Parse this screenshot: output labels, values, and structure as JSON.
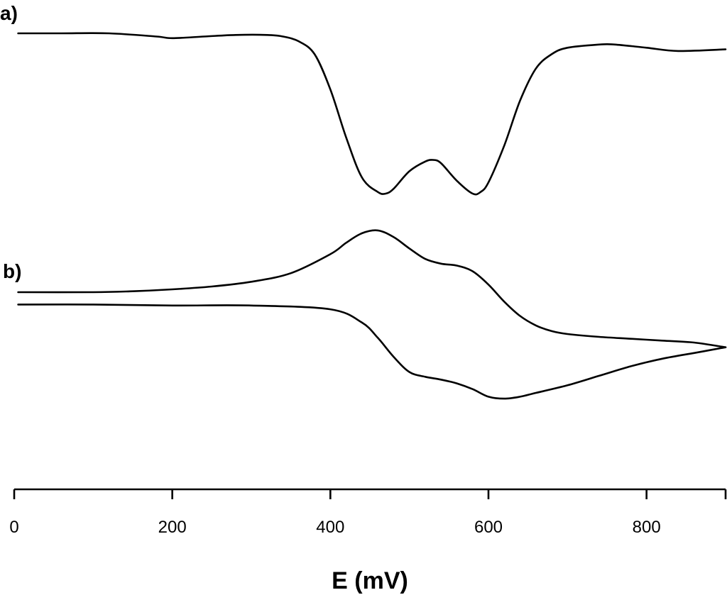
{
  "chart_data": {
    "type": "line",
    "xlabel": "E (mV)",
    "xlim": [
      0,
      900
    ],
    "xticks": [
      0,
      200,
      400,
      600,
      800
    ],
    "grid": false,
    "panels": [
      {
        "label": "a)",
        "description_type": "square-wave voltammogram",
        "series": [
          {
            "x": [
              5,
              60,
              120,
              180,
              200,
              240,
              280,
              320,
              340,
              360,
              380,
              400,
              420,
              440,
              460,
              470,
              480,
              500,
              520,
              530,
              540,
              560,
              580,
              590,
              600,
              620,
              640,
              660,
              680,
              700,
              740,
              760,
              800,
              840,
              900
            ],
            "y": [
              0.0,
              0.0,
              0.0,
              -0.02,
              -0.03,
              -0.02,
              -0.01,
              -0.01,
              -0.02,
              -0.05,
              -0.13,
              -0.35,
              -0.65,
              -0.9,
              -0.99,
              -1.0,
              -0.97,
              -0.86,
              -0.8,
              -0.79,
              -0.81,
              -0.92,
              -1.0,
              -0.99,
              -0.93,
              -0.7,
              -0.42,
              -0.22,
              -0.13,
              -0.09,
              -0.07,
              -0.07,
              -0.09,
              -0.11,
              -0.1
            ]
          }
        ]
      },
      {
        "label": "b)",
        "description_type": "cyclic voltammogram",
        "series": [
          {
            "x": [
              5,
              100,
              150,
              200,
              250,
              300,
              350,
              400,
              420,
              440,
              460,
              480,
              500,
              520,
              540,
              560,
              580,
              600,
              620,
              640,
              660,
              680,
              700,
              740,
              780,
              820,
              860,
              900
            ],
            "y": [
              0.0,
              0.0,
              0.01,
              0.03,
              0.06,
              0.11,
              0.2,
              0.4,
              0.52,
              0.62,
              0.65,
              0.58,
              0.46,
              0.35,
              0.3,
              0.28,
              0.22,
              0.08,
              -0.1,
              -0.25,
              -0.35,
              -0.41,
              -0.44,
              -0.47,
              -0.49,
              -0.51,
              -0.53,
              -0.58
            ]
          },
          {
            "x": [
              900,
              860,
              820,
              780,
              740,
              700,
              660,
              640,
              620,
              600,
              580,
              560,
              540,
              520,
              500,
              480,
              460,
              440,
              400,
              300,
              200,
              100,
              5
            ],
            "y": [
              -0.58,
              -0.64,
              -0.7,
              -0.78,
              -0.88,
              -0.98,
              -1.06,
              -1.1,
              -1.12,
              -1.1,
              -1.02,
              -0.96,
              -0.92,
              -0.89,
              -0.84,
              -0.68,
              -0.48,
              -0.32,
              -0.18,
              -0.14,
              -0.14,
              -0.13,
              -0.13
            ]
          }
        ]
      }
    ]
  }
}
